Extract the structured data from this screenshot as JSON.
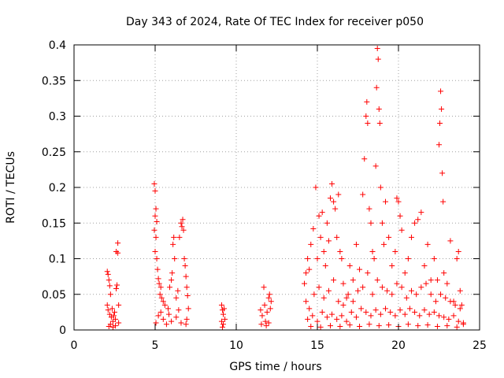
{
  "chart_data": {
    "type": "scatter",
    "title": "Day 343 of 2024, Rate Of TEC Index for receiver p050",
    "xlabel": "GPS time / hours",
    "ylabel": "ROTI / TECUs",
    "xlim": [
      0,
      25
    ],
    "ylim": [
      0,
      0.4
    ],
    "x_ticks": [
      0,
      5,
      10,
      15,
      20,
      25
    ],
    "x_tick_labels": [
      "0",
      "5",
      "10",
      "15",
      "20",
      "25"
    ],
    "y_ticks": [
      0,
      0.05,
      0.1,
      0.15,
      0.2,
      0.25,
      0.3,
      0.35,
      0.4
    ],
    "y_tick_labels": [
      "0",
      "0.05",
      "0.1",
      "0.15",
      "0.2",
      "0.25",
      "0.3",
      "0.35",
      "0.4"
    ],
    "grid": true,
    "marker": "+",
    "color": "#ff0000",
    "series": [
      {
        "name": "ROTI",
        "points": [
          [
            2.05,
            0.082
          ],
          [
            2.1,
            0.078
          ],
          [
            2.15,
            0.07
          ],
          [
            2.2,
            0.062
          ],
          [
            2.25,
            0.05
          ],
          [
            2.05,
            0.035
          ],
          [
            2.1,
            0.028
          ],
          [
            2.2,
            0.022
          ],
          [
            2.3,
            0.018
          ],
          [
            2.35,
            0.03
          ],
          [
            2.4,
            0.012
          ],
          [
            2.45,
            0.02
          ],
          [
            2.5,
            0.025
          ],
          [
            2.55,
            0.015
          ],
          [
            2.6,
            0.058
          ],
          [
            2.6,
            0.11
          ],
          [
            2.65,
            0.063
          ],
          [
            2.7,
            0.122
          ],
          [
            2.7,
            0.108
          ],
          [
            2.75,
            0.035
          ],
          [
            2.75,
            0.01
          ],
          [
            2.15,
            0.005
          ],
          [
            2.25,
            0.008
          ],
          [
            2.4,
            0.004
          ],
          [
            2.55,
            0.006
          ],
          [
            4.95,
            0.205
          ],
          [
            5.0,
            0.195
          ],
          [
            5.05,
            0.17
          ],
          [
            5.0,
            0.16
          ],
          [
            5.1,
            0.152
          ],
          [
            4.95,
            0.14
          ],
          [
            5.05,
            0.13
          ],
          [
            5.0,
            0.11
          ],
          [
            5.1,
            0.1
          ],
          [
            5.15,
            0.085
          ],
          [
            5.2,
            0.072
          ],
          [
            5.25,
            0.065
          ],
          [
            5.3,
            0.05
          ],
          [
            5.35,
            0.06
          ],
          [
            5.4,
            0.045
          ],
          [
            5.5,
            0.04
          ],
          [
            5.6,
            0.035
          ],
          [
            5.8,
            0.03
          ],
          [
            5.9,
            0.06
          ],
          [
            6.0,
            0.07
          ],
          [
            6.05,
            0.08
          ],
          [
            6.1,
            0.12
          ],
          [
            6.15,
            0.13
          ],
          [
            6.2,
            0.1
          ],
          [
            6.3,
            0.045
          ],
          [
            6.4,
            0.055
          ],
          [
            6.5,
            0.13
          ],
          [
            6.6,
            0.15
          ],
          [
            6.65,
            0.145
          ],
          [
            6.7,
            0.155
          ],
          [
            6.75,
            0.14
          ],
          [
            6.8,
            0.1
          ],
          [
            6.85,
            0.09
          ],
          [
            6.9,
            0.075
          ],
          [
            6.95,
            0.06
          ],
          [
            7.0,
            0.048
          ],
          [
            7.05,
            0.03
          ],
          [
            5.2,
            0.02
          ],
          [
            5.5,
            0.015
          ],
          [
            5.7,
            0.008
          ],
          [
            6.0,
            0.012
          ],
          [
            6.3,
            0.018
          ],
          [
            6.6,
            0.01
          ],
          [
            6.9,
            0.008
          ],
          [
            5.05,
            0.01
          ],
          [
            5.35,
            0.025
          ],
          [
            5.85,
            0.022
          ],
          [
            6.45,
            0.028
          ],
          [
            6.95,
            0.015
          ],
          [
            9.1,
            0.035
          ],
          [
            9.15,
            0.028
          ],
          [
            9.2,
            0.022
          ],
          [
            9.25,
            0.03
          ],
          [
            9.1,
            0.012
          ],
          [
            9.2,
            0.008
          ],
          [
            9.3,
            0.015
          ],
          [
            9.15,
            0.004
          ],
          [
            11.5,
            0.028
          ],
          [
            11.6,
            0.02
          ],
          [
            11.7,
            0.06
          ],
          [
            11.75,
            0.035
          ],
          [
            11.8,
            0.012
          ],
          [
            11.9,
            0.025
          ],
          [
            12.0,
            0.045
          ],
          [
            12.05,
            0.05
          ],
          [
            12.1,
            0.03
          ],
          [
            12.15,
            0.04
          ],
          [
            11.55,
            0.008
          ],
          [
            11.85,
            0.006
          ],
          [
            12.0,
            0.01
          ],
          [
            14.2,
            0.065
          ],
          [
            14.3,
            0.08
          ],
          [
            14.4,
            0.1
          ],
          [
            14.5,
            0.085
          ],
          [
            14.6,
            0.12
          ],
          [
            14.75,
            0.142
          ],
          [
            14.9,
            0.2
          ],
          [
            15.0,
            0.1
          ],
          [
            15.1,
            0.16
          ],
          [
            15.2,
            0.13
          ],
          [
            15.3,
            0.165
          ],
          [
            15.4,
            0.11
          ],
          [
            15.5,
            0.09
          ],
          [
            15.6,
            0.15
          ],
          [
            15.7,
            0.125
          ],
          [
            15.8,
            0.185
          ],
          [
            15.9,
            0.205
          ],
          [
            16.0,
            0.18
          ],
          [
            16.1,
            0.17
          ],
          [
            16.2,
            0.13
          ],
          [
            16.3,
            0.19
          ],
          [
            16.4,
            0.11
          ],
          [
            16.5,
            0.1
          ],
          [
            16.6,
            0.065
          ],
          [
            16.8,
            0.045
          ],
          [
            17.0,
            0.09
          ],
          [
            17.2,
            0.07
          ],
          [
            17.4,
            0.12
          ],
          [
            17.6,
            0.085
          ],
          [
            17.8,
            0.19
          ],
          [
            17.9,
            0.24
          ],
          [
            18.0,
            0.3
          ],
          [
            18.05,
            0.32
          ],
          [
            18.1,
            0.29
          ],
          [
            18.2,
            0.17
          ],
          [
            18.3,
            0.15
          ],
          [
            18.4,
            0.11
          ],
          [
            18.5,
            0.1
          ],
          [
            18.6,
            0.23
          ],
          [
            18.65,
            0.34
          ],
          [
            18.7,
            0.395
          ],
          [
            18.75,
            0.38
          ],
          [
            18.8,
            0.31
          ],
          [
            18.85,
            0.29
          ],
          [
            18.9,
            0.2
          ],
          [
            19.0,
            0.15
          ],
          [
            19.1,
            0.12
          ],
          [
            19.2,
            0.18
          ],
          [
            19.4,
            0.13
          ],
          [
            19.6,
            0.09
          ],
          [
            19.8,
            0.11
          ],
          [
            19.9,
            0.185
          ],
          [
            20.0,
            0.18
          ],
          [
            20.1,
            0.16
          ],
          [
            20.2,
            0.14
          ],
          [
            20.4,
            0.08
          ],
          [
            20.6,
            0.1
          ],
          [
            20.8,
            0.13
          ],
          [
            21.0,
            0.15
          ],
          [
            21.2,
            0.155
          ],
          [
            21.4,
            0.165
          ],
          [
            21.6,
            0.09
          ],
          [
            21.8,
            0.12
          ],
          [
            22.0,
            0.07
          ],
          [
            22.2,
            0.1
          ],
          [
            22.4,
            0.07
          ],
          [
            22.5,
            0.26
          ],
          [
            22.55,
            0.29
          ],
          [
            22.6,
            0.335
          ],
          [
            22.65,
            0.31
          ],
          [
            22.7,
            0.22
          ],
          [
            22.75,
            0.18
          ],
          [
            22.8,
            0.08
          ],
          [
            23.0,
            0.065
          ],
          [
            23.2,
            0.125
          ],
          [
            23.4,
            0.04
          ],
          [
            23.6,
            0.1
          ],
          [
            23.7,
            0.11
          ],
          [
            23.8,
            0.055
          ],
          [
            23.9,
            0.035
          ],
          [
            24.0,
            0.01
          ],
          [
            14.3,
            0.04
          ],
          [
            14.5,
            0.03
          ],
          [
            14.8,
            0.05
          ],
          [
            15.1,
            0.06
          ],
          [
            15.4,
            0.045
          ],
          [
            15.7,
            0.055
          ],
          [
            16.0,
            0.07
          ],
          [
            16.3,
            0.04
          ],
          [
            16.6,
            0.035
          ],
          [
            16.9,
            0.05
          ],
          [
            17.2,
            0.04
          ],
          [
            17.5,
            0.055
          ],
          [
            17.8,
            0.06
          ],
          [
            18.1,
            0.08
          ],
          [
            18.4,
            0.05
          ],
          [
            18.7,
            0.07
          ],
          [
            19.0,
            0.06
          ],
          [
            19.3,
            0.055
          ],
          [
            19.6,
            0.05
          ],
          [
            19.9,
            0.065
          ],
          [
            20.2,
            0.06
          ],
          [
            20.5,
            0.045
          ],
          [
            20.8,
            0.055
          ],
          [
            21.1,
            0.05
          ],
          [
            21.4,
            0.06
          ],
          [
            21.7,
            0.065
          ],
          [
            22.0,
            0.05
          ],
          [
            22.3,
            0.04
          ],
          [
            22.6,
            0.05
          ],
          [
            22.9,
            0.045
          ],
          [
            23.2,
            0.04
          ],
          [
            23.5,
            0.035
          ],
          [
            23.8,
            0.03
          ],
          [
            14.4,
            0.015
          ],
          [
            14.7,
            0.02
          ],
          [
            15.0,
            0.012
          ],
          [
            15.3,
            0.025
          ],
          [
            15.6,
            0.018
          ],
          [
            15.9,
            0.022
          ],
          [
            16.2,
            0.015
          ],
          [
            16.5,
            0.02
          ],
          [
            16.8,
            0.012
          ],
          [
            17.1,
            0.025
          ],
          [
            17.4,
            0.018
          ],
          [
            17.7,
            0.03
          ],
          [
            18.0,
            0.025
          ],
          [
            18.3,
            0.02
          ],
          [
            18.6,
            0.028
          ],
          [
            18.9,
            0.022
          ],
          [
            19.2,
            0.03
          ],
          [
            19.5,
            0.025
          ],
          [
            19.8,
            0.02
          ],
          [
            20.1,
            0.028
          ],
          [
            20.4,
            0.022
          ],
          [
            20.7,
            0.03
          ],
          [
            21.0,
            0.025
          ],
          [
            21.3,
            0.02
          ],
          [
            21.6,
            0.028
          ],
          [
            21.9,
            0.022
          ],
          [
            22.2,
            0.025
          ],
          [
            22.5,
            0.02
          ],
          [
            22.8,
            0.018
          ],
          [
            23.1,
            0.015
          ],
          [
            23.4,
            0.02
          ],
          [
            23.7,
            0.012
          ],
          [
            24.0,
            0.008
          ],
          [
            14.6,
            0.005
          ],
          [
            15.2,
            0.004
          ],
          [
            15.8,
            0.006
          ],
          [
            16.4,
            0.005
          ],
          [
            17.0,
            0.007
          ],
          [
            17.6,
            0.005
          ],
          [
            18.2,
            0.008
          ],
          [
            18.8,
            0.006
          ],
          [
            19.4,
            0.007
          ],
          [
            20.0,
            0.005
          ],
          [
            20.6,
            0.008
          ],
          [
            21.2,
            0.006
          ],
          [
            21.8,
            0.007
          ],
          [
            22.4,
            0.005
          ],
          [
            23.0,
            0.006
          ],
          [
            23.6,
            0.004
          ]
        ]
      }
    ]
  }
}
